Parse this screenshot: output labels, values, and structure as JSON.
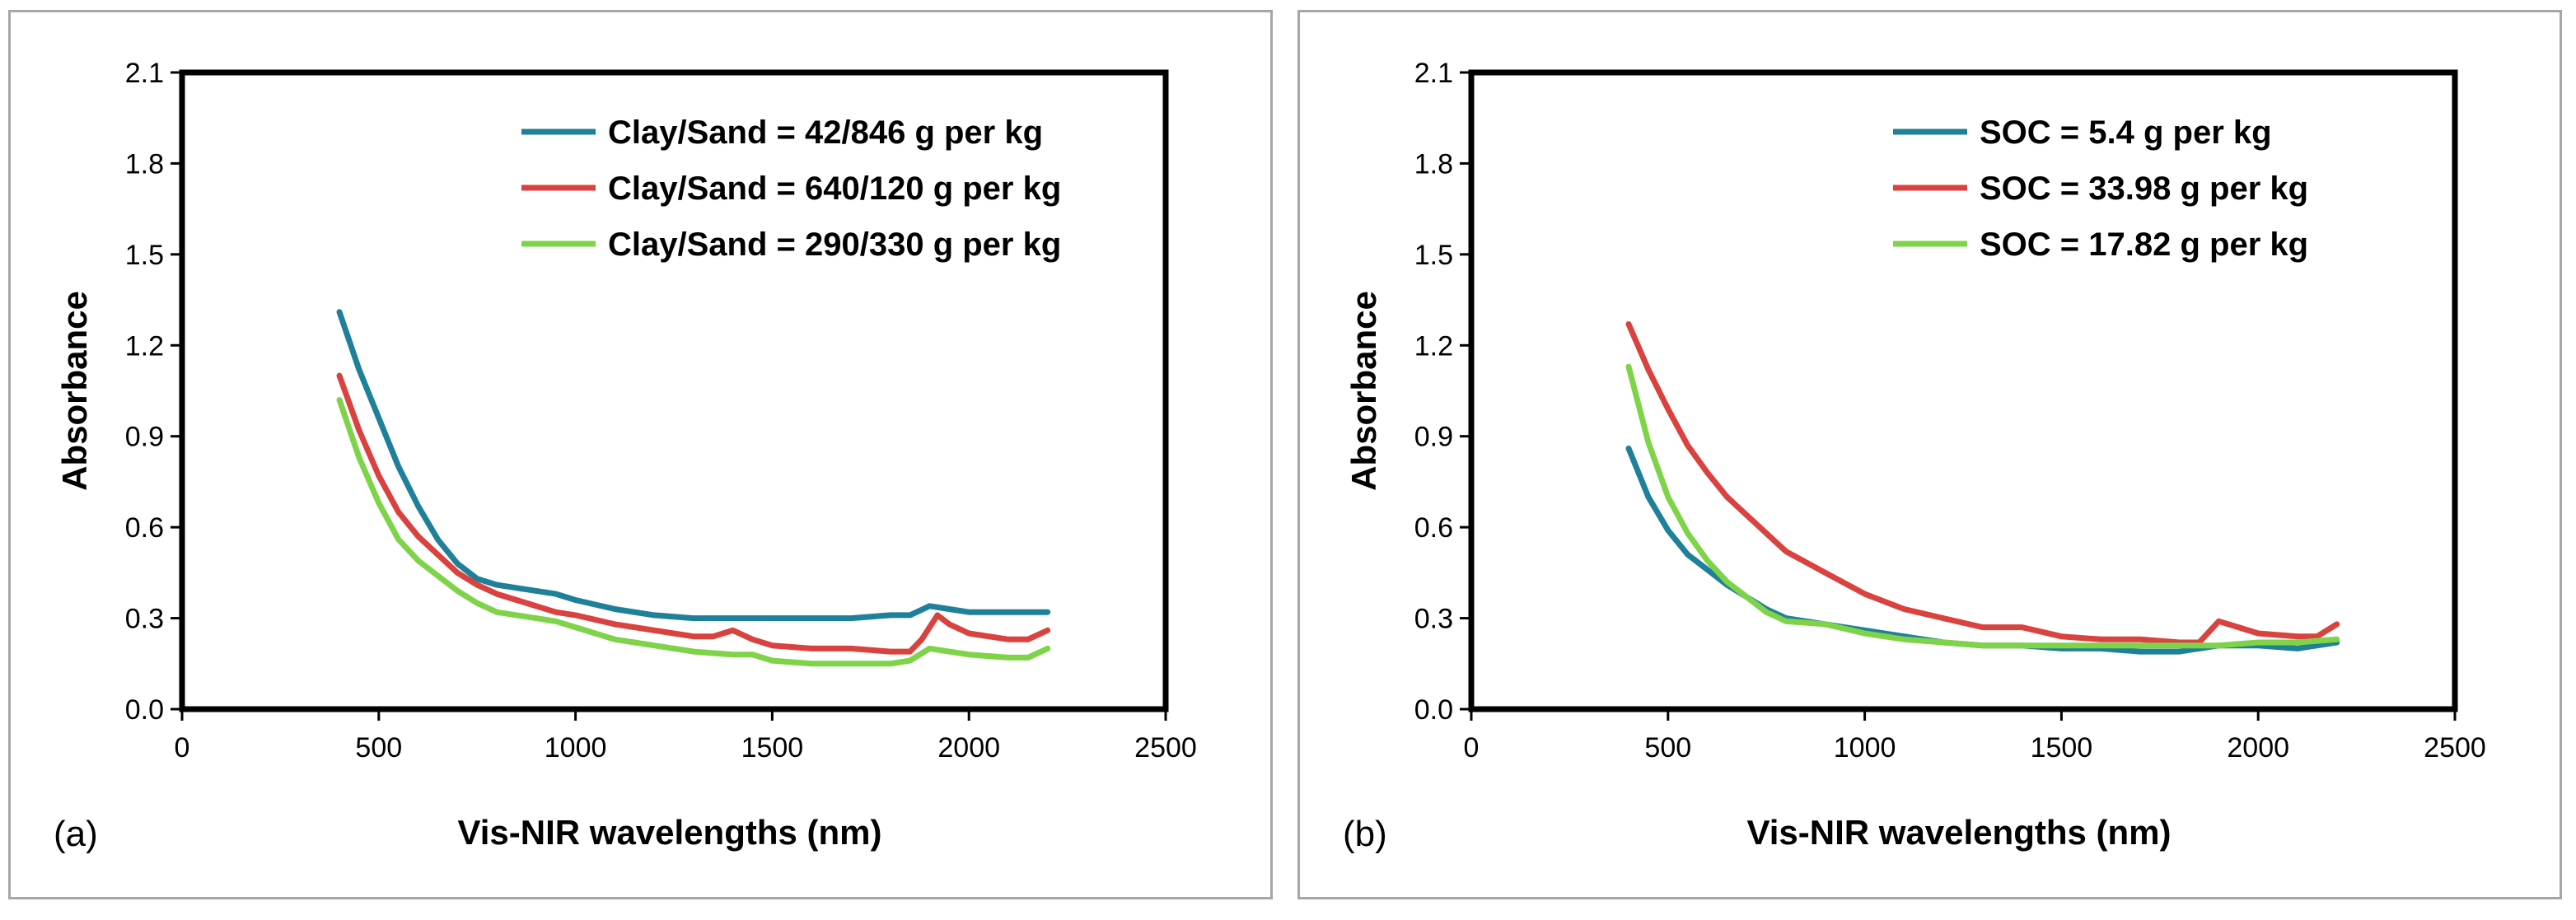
{
  "chart_data": [
    {
      "type": "line",
      "panel_label": "(a)",
      "title": "",
      "xlabel": "Vis-NIR wavelengths (nm)",
      "ylabel": "Absorbance",
      "xlim": [
        0,
        2500
      ],
      "ylim": [
        0,
        2.1
      ],
      "xticks": [
        "0",
        "500",
        "1000",
        "1500",
        "2000",
        "2500"
      ],
      "yticks": [
        "0.0",
        "0.3",
        "0.6",
        "0.9",
        "1.2",
        "1.5",
        "1.8",
        "2.1"
      ],
      "grid": false,
      "legend": "top-right",
      "series": [
        {
          "name": "Clay/Sand = 42/846  g per kg",
          "color": "#1f8199",
          "x": [
            400,
            450,
            500,
            550,
            600,
            650,
            700,
            750,
            800,
            850,
            900,
            950,
            1000,
            1100,
            1200,
            1300,
            1400,
            1500,
            1600,
            1700,
            1800,
            1850,
            1900,
            1950,
            2000,
            2100,
            2200
          ],
          "y": [
            1.31,
            1.12,
            0.96,
            0.8,
            0.67,
            0.56,
            0.48,
            0.43,
            0.41,
            0.4,
            0.39,
            0.38,
            0.36,
            0.33,
            0.31,
            0.3,
            0.3,
            0.3,
            0.3,
            0.3,
            0.31,
            0.31,
            0.34,
            0.33,
            0.32,
            0.32,
            0.32
          ]
        },
        {
          "name": "Clay/Sand = 640/120  g per kg",
          "color": "#d9423f",
          "x": [
            400,
            450,
            500,
            550,
            600,
            650,
            700,
            750,
            800,
            850,
            900,
            950,
            1000,
            1100,
            1200,
            1300,
            1350,
            1400,
            1450,
            1500,
            1600,
            1700,
            1800,
            1850,
            1880,
            1920,
            1950,
            2000,
            2100,
            2150,
            2200
          ],
          "y": [
            1.1,
            0.92,
            0.77,
            0.65,
            0.57,
            0.51,
            0.45,
            0.41,
            0.38,
            0.36,
            0.34,
            0.32,
            0.31,
            0.28,
            0.26,
            0.24,
            0.24,
            0.26,
            0.23,
            0.21,
            0.2,
            0.2,
            0.19,
            0.19,
            0.23,
            0.31,
            0.28,
            0.25,
            0.23,
            0.23,
            0.26
          ]
        },
        {
          "name": "Clay/Sand = 290/330  g per kg",
          "color": "#7ed348",
          "x": [
            400,
            450,
            500,
            550,
            600,
            650,
            700,
            750,
            800,
            850,
            900,
            950,
            1000,
            1100,
            1200,
            1300,
            1400,
            1450,
            1500,
            1600,
            1700,
            1800,
            1850,
            1900,
            1950,
            2000,
            2100,
            2150,
            2200
          ],
          "y": [
            1.02,
            0.83,
            0.68,
            0.56,
            0.49,
            0.44,
            0.39,
            0.35,
            0.32,
            0.31,
            0.3,
            0.29,
            0.27,
            0.23,
            0.21,
            0.19,
            0.18,
            0.18,
            0.16,
            0.15,
            0.15,
            0.15,
            0.16,
            0.2,
            0.19,
            0.18,
            0.17,
            0.17,
            0.2
          ]
        }
      ]
    },
    {
      "type": "line",
      "panel_label": "(b)",
      "title": "",
      "xlabel": "Vis-NIR wavelengths (nm)",
      "ylabel": "Absorbance",
      "xlim": [
        0,
        2500
      ],
      "ylim": [
        0,
        2.1
      ],
      "xticks": [
        "0",
        "500",
        "1000",
        "1500",
        "2000",
        "2500"
      ],
      "yticks": [
        "0.0",
        "0.3",
        "0.6",
        "0.9",
        "1.2",
        "1.5",
        "1.8",
        "2.1"
      ],
      "grid": false,
      "legend": "top-right",
      "series": [
        {
          "name": "SOC = 5.4  g per kg",
          "color": "#1f8199",
          "x": [
            400,
            450,
            500,
            550,
            600,
            650,
            700,
            750,
            800,
            900,
            1000,
            1100,
            1200,
            1300,
            1400,
            1500,
            1600,
            1700,
            1800,
            1900,
            2000,
            2100,
            2200
          ],
          "y": [
            0.86,
            0.7,
            0.59,
            0.51,
            0.46,
            0.41,
            0.37,
            0.33,
            0.3,
            0.28,
            0.26,
            0.24,
            0.22,
            0.21,
            0.21,
            0.2,
            0.2,
            0.19,
            0.19,
            0.21,
            0.21,
            0.2,
            0.22
          ]
        },
        {
          "name": "SOC = 33.98  g per kg",
          "color": "#d9423f",
          "x": [
            400,
            450,
            500,
            550,
            600,
            650,
            700,
            750,
            800,
            900,
            1000,
            1100,
            1200,
            1300,
            1400,
            1500,
            1600,
            1700,
            1800,
            1850,
            1900,
            1950,
            2000,
            2100,
            2150,
            2200
          ],
          "y": [
            1.27,
            1.12,
            0.99,
            0.87,
            0.78,
            0.7,
            0.64,
            0.58,
            0.52,
            0.45,
            0.38,
            0.33,
            0.3,
            0.27,
            0.27,
            0.24,
            0.23,
            0.23,
            0.22,
            0.22,
            0.29,
            0.27,
            0.25,
            0.24,
            0.24,
            0.28
          ]
        },
        {
          "name": "SOC = 17.82  g per kg",
          "color": "#7ed348",
          "x": [
            400,
            450,
            500,
            550,
            600,
            650,
            700,
            750,
            800,
            900,
            1000,
            1100,
            1200,
            1300,
            1400,
            1500,
            1600,
            1700,
            1800,
            1900,
            2000,
            2100,
            2200
          ],
          "y": [
            1.13,
            0.88,
            0.7,
            0.58,
            0.49,
            0.42,
            0.37,
            0.32,
            0.29,
            0.28,
            0.25,
            0.23,
            0.22,
            0.21,
            0.21,
            0.21,
            0.21,
            0.21,
            0.21,
            0.21,
            0.22,
            0.22,
            0.23
          ]
        }
      ]
    }
  ]
}
